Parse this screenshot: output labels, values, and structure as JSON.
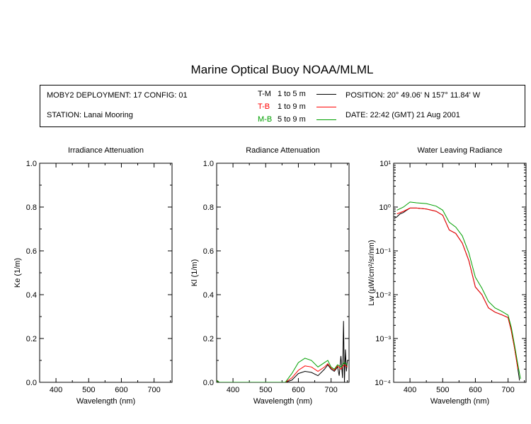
{
  "title": "Marine Optical Buoy NOAA/MLML",
  "info": {
    "deployment": "MOBY2 DEPLOYMENT: 17 CONFIG: 01",
    "station": "STATION: Lanai Mooring",
    "position": "POSITION: 20° 49.06' N   157° 11.84' W",
    "date": "DATE: 22:42 (GMT) 21 Aug 2001"
  },
  "legend": [
    {
      "code": "T-M",
      "range": "1 to 5  m",
      "color": "#000000"
    },
    {
      "code": "T-B",
      "range": "1 to 9  m",
      "color": "#ff0000"
    },
    {
      "code": "M-B",
      "range": "5 to 9  m",
      "color": "#00a000"
    }
  ],
  "chart_data": [
    {
      "type": "line",
      "title": "Irradiance Attenuation",
      "xlabel": "Wavelength (nm)",
      "ylabel": "Ke  (1/m)",
      "xlim": [
        350,
        755
      ],
      "ylim": [
        0,
        1.0
      ],
      "xticks": [
        "400",
        "500",
        "600",
        "700"
      ],
      "yticks": [
        "0.0",
        "0.2",
        "0.4",
        "0.6",
        "0.8",
        "1.0"
      ],
      "series": []
    },
    {
      "type": "line",
      "title": "Radiance Attenuation",
      "xlabel": "Wavelength (nm)",
      "ylabel": "Kl  (1/m)",
      "xlim": [
        350,
        755
      ],
      "ylim": [
        0,
        1.0
      ],
      "xticks": [
        "400",
        "500",
        "600",
        "700"
      ],
      "yticks": [
        "0.0",
        "0.2",
        "0.4",
        "0.6",
        "0.8",
        "1.0"
      ],
      "series": [
        {
          "name": "T-M",
          "color": "#000000",
          "x": [
            350,
            354,
            358,
            560,
            580,
            600,
            620,
            640,
            660,
            680,
            690,
            700,
            710,
            720,
            725,
            730,
            735,
            738,
            741,
            744,
            747,
            750
          ],
          "y": [
            0.01,
            0.005,
            0.0,
            0.0,
            0.01,
            0.04,
            0.05,
            0.045,
            0.03,
            0.06,
            0.08,
            0.06,
            0.05,
            0.07,
            0.03,
            0.12,
            0.02,
            0.28,
            0.0,
            0.15,
            0.05,
            0.1
          ]
        },
        {
          "name": "T-B",
          "color": "#ff0000",
          "x": [
            350,
            355,
            560,
            580,
            600,
            620,
            640,
            660,
            680,
            690,
            700,
            710,
            720,
            730,
            740,
            750
          ],
          "y": [
            0.01,
            0.0,
            0.0,
            0.02,
            0.055,
            0.075,
            0.07,
            0.05,
            0.07,
            0.085,
            0.065,
            0.055,
            0.075,
            0.06,
            0.08,
            0.07
          ]
        },
        {
          "name": "M-B",
          "color": "#00a000",
          "x": [
            350,
            355,
            560,
            580,
            600,
            620,
            640,
            660,
            680,
            690,
            700,
            710,
            720,
            730,
            740,
            750
          ],
          "y": [
            0.01,
            0.0,
            0.0,
            0.04,
            0.09,
            0.11,
            0.1,
            0.07,
            0.09,
            0.1,
            0.07,
            0.06,
            0.08,
            0.07,
            0.09,
            0.08
          ]
        }
      ]
    },
    {
      "type": "line",
      "title": "Water Leaving Radiance",
      "xlabel": "Wavelength (nm)",
      "ylabel": "Lw  (µW/cm²/sr/nm)",
      "xscale": "linear",
      "yscale": "log",
      "xlim": [
        350,
        755
      ],
      "ylim": [
        0.0001,
        10
      ],
      "xticks": [
        "400",
        "500",
        "600",
        "700"
      ],
      "yticks": [
        "10⁻⁴",
        "10⁻³",
        "10⁻²",
        "10⁻¹",
        "10⁰",
        "10¹"
      ],
      "series": [
        {
          "name": "T-M",
          "color": "#000000",
          "x": [
            352,
            360,
            370,
            380,
            390,
            400,
            420,
            450,
            480,
            500,
            520,
            540,
            560,
            580,
            600,
            620,
            640,
            660,
            680,
            700,
            710,
            720,
            730,
            735
          ],
          "y": [
            0.55,
            0.6,
            0.7,
            0.75,
            0.85,
            0.95,
            0.95,
            0.9,
            0.8,
            0.65,
            0.3,
            0.25,
            0.15,
            0.06,
            0.015,
            0.01,
            0.005,
            0.004,
            0.0035,
            0.003,
            0.0015,
            0.0006,
            0.0002,
            0.00011
          ]
        },
        {
          "name": "T-B",
          "color": "#ff0000",
          "x": [
            360,
            380,
            400,
            420,
            450,
            480,
            500,
            520,
            540,
            560,
            580,
            600,
            620,
            640,
            660,
            680,
            700,
            710,
            720,
            730
          ],
          "y": [
            0.7,
            0.8,
            0.95,
            0.95,
            0.9,
            0.8,
            0.65,
            0.3,
            0.25,
            0.15,
            0.06,
            0.015,
            0.01,
            0.005,
            0.004,
            0.0035,
            0.003,
            0.0015,
            0.0006,
            0.0002
          ]
        },
        {
          "name": "M-B",
          "color": "#00a000",
          "x": [
            360,
            380,
            400,
            420,
            450,
            480,
            500,
            520,
            540,
            560,
            580,
            600,
            620,
            640,
            660,
            680,
            700,
            710,
            720,
            730,
            738
          ],
          "y": [
            0.85,
            1.0,
            1.3,
            1.25,
            1.2,
            1.05,
            0.85,
            0.45,
            0.35,
            0.22,
            0.09,
            0.025,
            0.014,
            0.007,
            0.005,
            0.0042,
            0.0034,
            0.0018,
            0.0007,
            0.00025,
            0.00012
          ]
        }
      ]
    }
  ]
}
